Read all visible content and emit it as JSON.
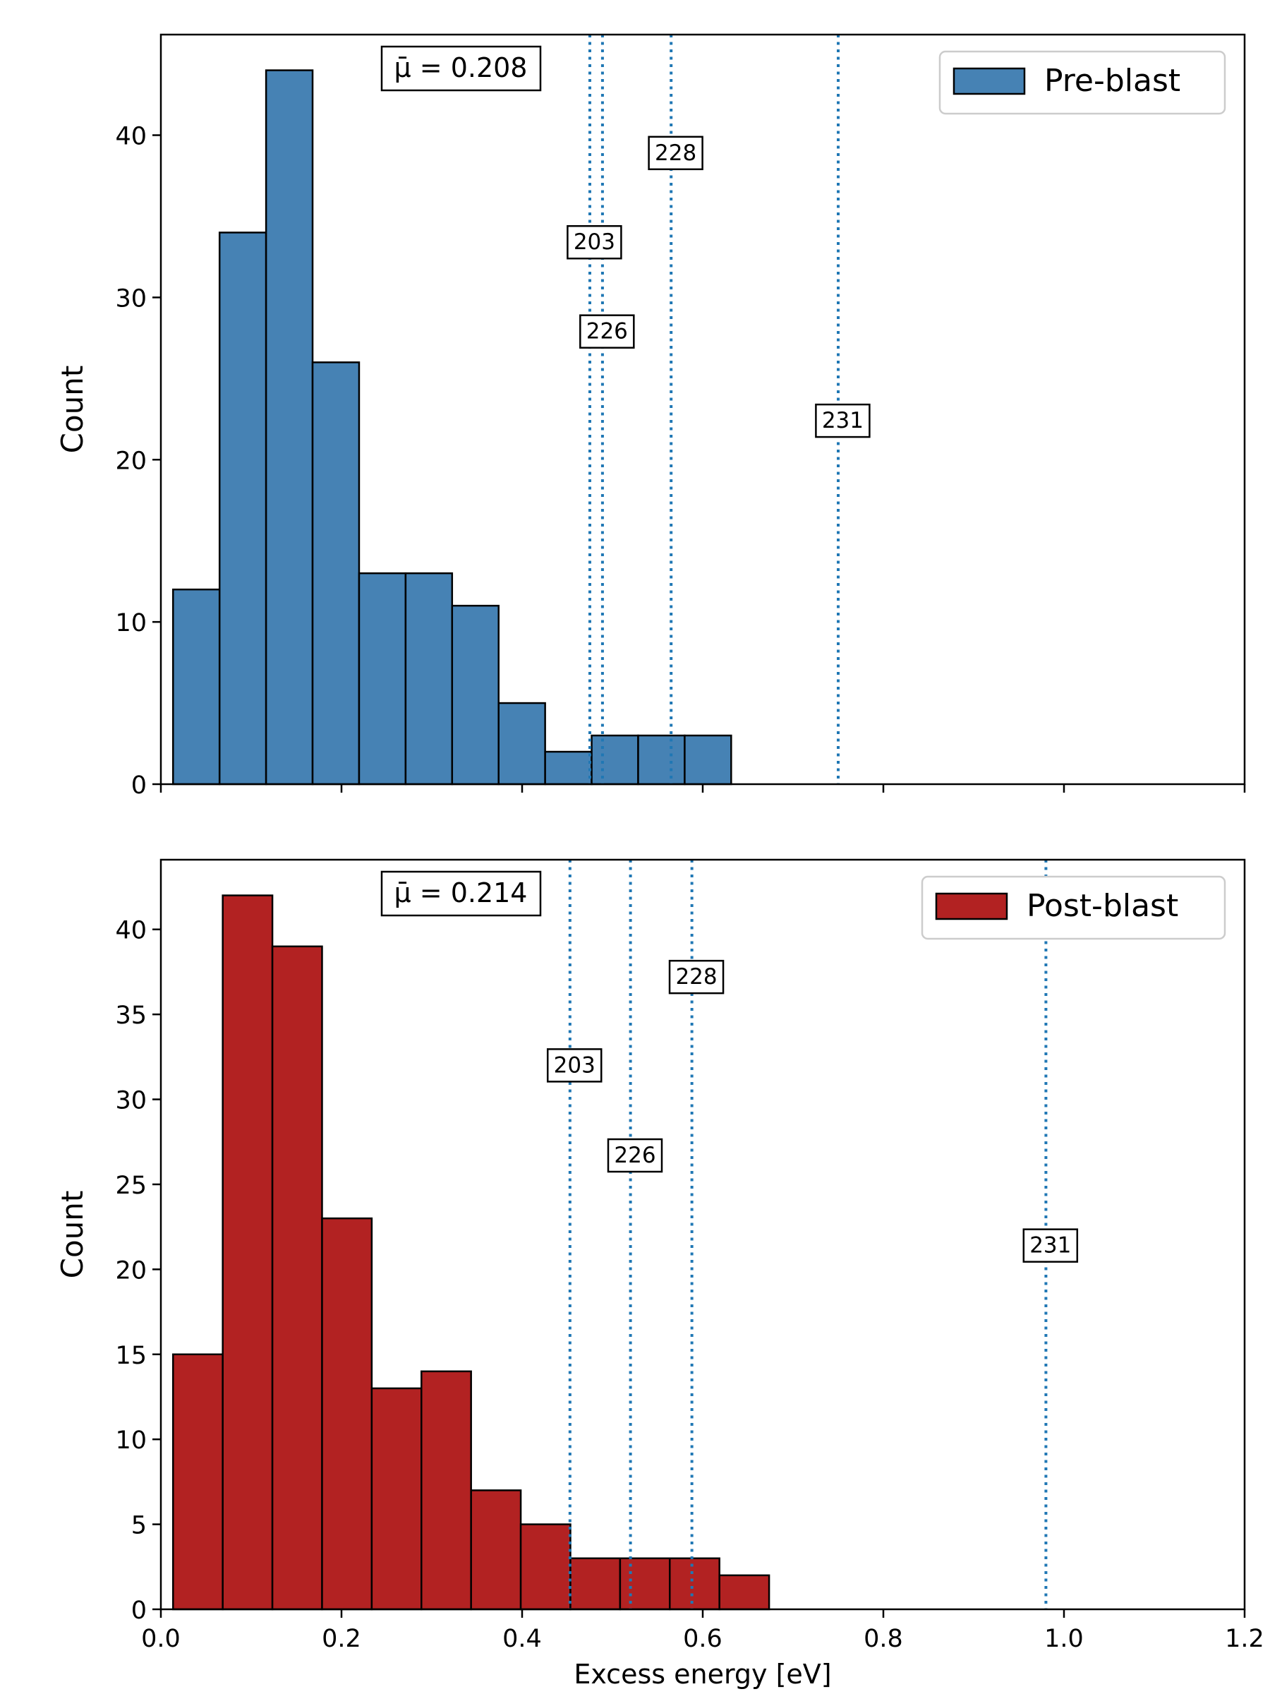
{
  "chart_data": [
    {
      "type": "bar",
      "panel": "top",
      "xlabel": "",
      "ylabel": "Count",
      "xlim": [
        0.0,
        1.2
      ],
      "ylim": [
        0,
        46.2
      ],
      "yticks": [
        0,
        10,
        20,
        30,
        40
      ],
      "xticks": [
        0.0,
        0.2,
        0.4,
        0.6,
        0.8,
        1.0,
        1.2
      ],
      "show_xticklabels": false,
      "grid": false,
      "legend": {
        "label": "Pre-blast",
        "placement": "top-right"
      },
      "bar_color": "#4682b4",
      "bins": [
        {
          "start": 0.0135,
          "end": 0.065,
          "count": 12
        },
        {
          "start": 0.065,
          "end": 0.1165,
          "count": 34
        },
        {
          "start": 0.1165,
          "end": 0.168,
          "count": 44
        },
        {
          "start": 0.168,
          "end": 0.2195,
          "count": 26
        },
        {
          "start": 0.2195,
          "end": 0.271,
          "count": 13
        },
        {
          "start": 0.271,
          "end": 0.3225,
          "count": 13
        },
        {
          "start": 0.3225,
          "end": 0.374,
          "count": 11
        },
        {
          "start": 0.374,
          "end": 0.4255,
          "count": 5
        },
        {
          "start": 0.4255,
          "end": 0.477,
          "count": 2
        },
        {
          "start": 0.477,
          "end": 0.5285,
          "count": 3
        },
        {
          "start": 0.5285,
          "end": 0.58,
          "count": 3
        },
        {
          "start": 0.58,
          "end": 0.6315,
          "count": 3
        }
      ],
      "mean_label": "μ̄ = 0.208",
      "vlines": [
        {
          "x": 0.475,
          "label": "203",
          "label_y": 33.4,
          "label_dx": 0.005
        },
        {
          "x": 0.489,
          "label": "226",
          "label_y": 27.9,
          "label_dx": 0.005
        },
        {
          "x": 0.565,
          "label": "228",
          "label_y": 38.9,
          "label_dx": 0.005
        },
        {
          "x": 0.75,
          "label": "231",
          "label_y": 22.4,
          "label_dx": 0.005
        }
      ],
      "vline_color": "#1f77b4"
    },
    {
      "type": "bar",
      "panel": "bottom",
      "xlabel": "Excess energy [eV]",
      "ylabel": "Count",
      "xlim": [
        0.0,
        1.2
      ],
      "ylim": [
        0,
        44.1
      ],
      "yticks": [
        0,
        5,
        10,
        15,
        20,
        25,
        30,
        35,
        40
      ],
      "xticks": [
        0.0,
        0.2,
        0.4,
        0.6,
        0.8,
        1.0,
        1.2
      ],
      "xticklabels": [
        "0.0",
        "0.2",
        "0.4",
        "0.6",
        "0.8",
        "1.0",
        "1.2"
      ],
      "show_xticklabels": true,
      "grid": false,
      "legend": {
        "label": "Post-blast",
        "placement": "top-right"
      },
      "bar_color": "#b22222",
      "bins": [
        {
          "start": 0.0135,
          "end": 0.0685,
          "count": 15
        },
        {
          "start": 0.0685,
          "end": 0.1235,
          "count": 42
        },
        {
          "start": 0.1235,
          "end": 0.1785,
          "count": 39
        },
        {
          "start": 0.1785,
          "end": 0.2335,
          "count": 23
        },
        {
          "start": 0.2335,
          "end": 0.2885,
          "count": 13
        },
        {
          "start": 0.2885,
          "end": 0.3435,
          "count": 14
        },
        {
          "start": 0.3435,
          "end": 0.3985,
          "count": 7
        },
        {
          "start": 0.3985,
          "end": 0.4535,
          "count": 5
        },
        {
          "start": 0.4535,
          "end": 0.5085,
          "count": 3
        },
        {
          "start": 0.5085,
          "end": 0.5635,
          "count": 3
        },
        {
          "start": 0.5635,
          "end": 0.6185,
          "count": 3
        },
        {
          "start": 0.6185,
          "end": 0.6735,
          "count": 2
        }
      ],
      "mean_label": "μ̄ = 0.214",
      "vlines": [
        {
          "x": 0.453,
          "label": "203",
          "label_y": 32.0,
          "label_dx": 0.005
        },
        {
          "x": 0.52,
          "label": "226",
          "label_y": 26.7,
          "label_dx": 0.005
        },
        {
          "x": 0.588,
          "label": "228",
          "label_y": 37.2,
          "label_dx": 0.005
        },
        {
          "x": 0.98,
          "label": "231",
          "label_y": 21.4,
          "label_dx": 0.005
        }
      ],
      "vline_color": "#1f77b4"
    }
  ]
}
